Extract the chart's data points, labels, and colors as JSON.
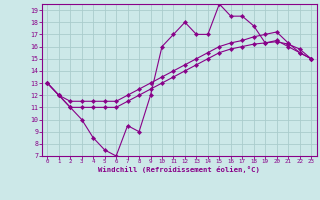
{
  "background_color": "#cce8e8",
  "grid_color": "#aacccc",
  "line_color": "#880088",
  "marker_color": "#880088",
  "xlabel": "Windchill (Refroidissement éolien,°C)",
  "xlim": [
    -0.5,
    23.5
  ],
  "ylim": [
    7,
    19.5
  ],
  "xticks": [
    0,
    1,
    2,
    3,
    4,
    5,
    6,
    7,
    8,
    9,
    10,
    11,
    12,
    13,
    14,
    15,
    16,
    17,
    18,
    19,
    20,
    21,
    22,
    23
  ],
  "yticks": [
    7,
    8,
    9,
    10,
    11,
    12,
    13,
    14,
    15,
    16,
    17,
    18,
    19
  ],
  "line1_x": [
    0,
    1,
    2,
    3,
    4,
    5,
    6,
    7,
    8,
    9,
    10,
    11,
    12,
    13,
    14,
    15,
    16,
    17,
    18,
    19,
    20,
    21,
    22,
    23
  ],
  "line1_y": [
    13,
    12,
    11,
    10,
    8.5,
    7.5,
    7,
    9.5,
    9,
    12,
    16,
    17,
    18,
    17,
    17,
    19.5,
    18.5,
    18.5,
    17.7,
    16.3,
    16.5,
    16,
    15.5,
    15
  ],
  "line2_x": [
    0,
    1,
    2,
    3,
    4,
    5,
    6,
    7,
    8,
    9,
    10,
    11,
    12,
    13,
    14,
    15,
    16,
    17,
    18,
    19,
    20,
    21,
    22,
    23
  ],
  "line2_y": [
    13,
    12,
    11,
    11,
    11,
    11,
    11,
    11.5,
    12,
    12.5,
    13,
    13.5,
    14,
    14.5,
    15,
    15.5,
    15.8,
    16,
    16.2,
    16.3,
    16.4,
    16.2,
    15.8,
    15
  ],
  "line3_x": [
    0,
    1,
    2,
    3,
    4,
    5,
    6,
    7,
    8,
    9,
    10,
    11,
    12,
    13,
    14,
    15,
    16,
    17,
    18,
    19,
    20,
    21,
    22,
    23
  ],
  "line3_y": [
    13,
    12,
    11.5,
    11.5,
    11.5,
    11.5,
    11.5,
    12,
    12.5,
    13,
    13.5,
    14,
    14.5,
    15,
    15.5,
    16,
    16.3,
    16.5,
    16.8,
    17,
    17.2,
    16.3,
    15.5,
    15
  ]
}
